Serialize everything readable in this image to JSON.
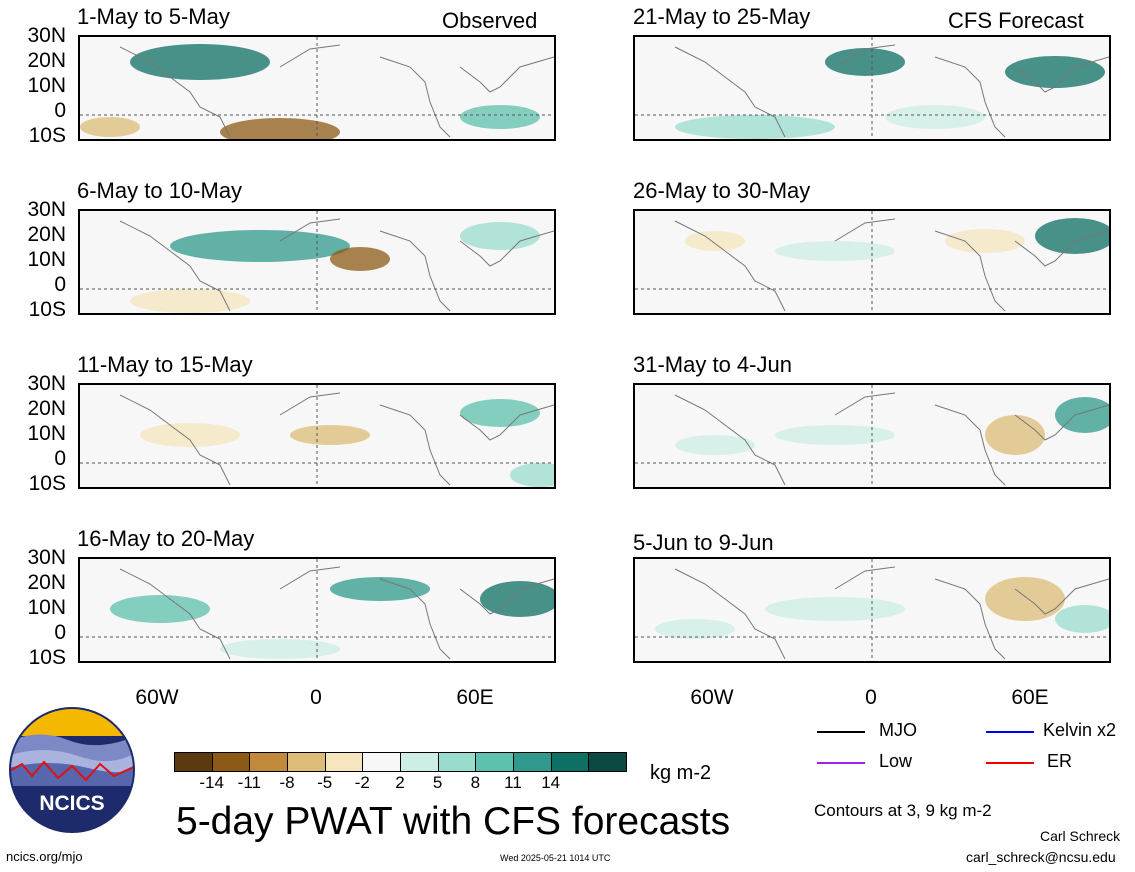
{
  "panels": [
    {
      "title": "1-May to 5-May",
      "tag": "Observed"
    },
    {
      "title": "6-May to 10-May",
      "tag": ""
    },
    {
      "title": "11-May to 15-May",
      "tag": ""
    },
    {
      "title": "16-May to 20-May",
      "tag": ""
    },
    {
      "title": "21-May to 25-May",
      "tag": "CFS Forecast"
    },
    {
      "title": "26-May to 30-May",
      "tag": ""
    },
    {
      "title": "31-May to 4-Jun",
      "tag": ""
    },
    {
      "title": "5-Jun to 9-Jun",
      "tag": ""
    }
  ],
  "lat_labels": [
    "30N",
    "20N",
    "10N",
    "0",
    "10S"
  ],
  "lon_labels": [
    "60W",
    "0",
    "60E"
  ],
  "colorbar": {
    "colors": [
      "#5a3a0e",
      "#8c5a16",
      "#c08a3a",
      "#dcbc78",
      "#f5e6bf",
      "#f7f7f7",
      "#cdeee6",
      "#99dccd",
      "#5ec0ae",
      "#2f9a8c",
      "#0e6f63",
      "#0a4a42"
    ],
    "labels": [
      "-14",
      "-11",
      "-8",
      "-5",
      "-2",
      "2",
      "5",
      "8",
      "11",
      "14"
    ],
    "units": "kg m-2"
  },
  "legend": {
    "mjo": {
      "label": "MJO",
      "color": "#000000"
    },
    "kelvin": {
      "label": "Kelvin x2",
      "color": "#0000ee"
    },
    "low": {
      "label": "Low",
      "color": "#a020f0"
    },
    "er": {
      "label": "ER",
      "color": "#ee0000"
    },
    "contours_note": "Contours at 3, 9 kg m-2"
  },
  "title": "5-day PWAT with CFS forecasts",
  "logo_text": "NCICS",
  "footer": {
    "url": "ncics.org/mjo",
    "timestamp": "Wed 2025-05-21 1014 UTC",
    "author": "Carl Schreck",
    "email": "carl_schreck@ncsu.edu"
  }
}
